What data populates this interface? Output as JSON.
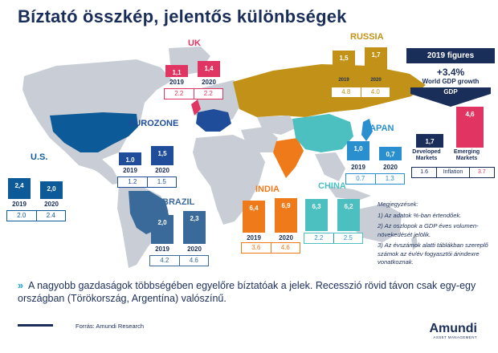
{
  "title": "Bíztató összkép, jelentős különbségek",
  "colors": {
    "navy": "#1a2e5a",
    "us": "#0d5a99",
    "uk": "#e03562",
    "eurozone": "#1f4d9a",
    "russia": "#c29218",
    "japan": "#2a8fcf",
    "india": "#ef7a1a",
    "china": "#4cc0c0",
    "brazil": "#3a6a9a",
    "emerging": "#e03562"
  },
  "regions": {
    "us": {
      "label": "U.S.",
      "gdp": [
        "2,4",
        "2,0"
      ],
      "years": [
        "2019",
        "2020"
      ],
      "inflation": [
        "2.0",
        "2.4"
      ]
    },
    "uk": {
      "label": "UK",
      "gdp": [
        "1,1",
        "1,4"
      ],
      "years": [
        "2019",
        "2020"
      ],
      "inflation": [
        "2.2",
        "2.2"
      ]
    },
    "eurozone": {
      "label": "EUROZONE",
      "gdp": [
        "1.0",
        "1,5"
      ],
      "years": [
        "2019",
        "2020"
      ],
      "inflation": [
        "1.2",
        "1.5"
      ]
    },
    "russia": {
      "label": "RUSSIA",
      "gdp": [
        "1,5",
        "1,7"
      ],
      "years": [
        "2019",
        "2020"
      ],
      "inflation": [
        "4.8",
        "4.0"
      ]
    },
    "japan": {
      "label": "JAPAN",
      "gdp": [
        "1,0",
        "0,7"
      ],
      "years": [
        "2019",
        "2020"
      ],
      "inflation": [
        "0.7",
        "1.3"
      ]
    },
    "india": {
      "label": "INDIA",
      "gdp": [
        "6,4",
        "6,9"
      ],
      "years": [
        "2019",
        "2020"
      ],
      "inflation": [
        "3.6",
        "4.6"
      ]
    },
    "china": {
      "label": "CHINA",
      "gdp": [
        "6,3",
        "6,2"
      ],
      "years": [
        "2019",
        "2020"
      ],
      "inflation": [
        "2.2",
        "2.5"
      ]
    },
    "brazil": {
      "label": "BRAZIL",
      "gdp": [
        "2,0",
        "2,3"
      ],
      "years": [
        "2019",
        "2020"
      ],
      "inflation": [
        "4.2",
        "4.6"
      ]
    }
  },
  "world_panel": {
    "figures_label": "2019 figures",
    "growth_value": "+3.4%",
    "growth_label": "World GDP growth",
    "gdp_label": "GDP",
    "developed": {
      "value": "1,7",
      "label": "Developed Markets",
      "inflation": "1.6"
    },
    "emerging": {
      "value": "4,6",
      "label": "Emerging Markets",
      "inflation": "3.7"
    },
    "inflation_label": "Inflation"
  },
  "notes": {
    "heading": "Megjegyzések:",
    "items": [
      "1)  Az adatok %-ban értendőek.",
      "2)  Az oszlopok a GDP éves volumen-növekedését jelölik.",
      "3)  Az évszámok alatti táblákban szereplő számok az év/év fogyasztói árindexre vonatkoznak."
    ]
  },
  "bullet": "A nagyobb gazdaságok többségében egyelőre bíztatóak a jelek. Recesszió rövid távon csak egy-egy országban (Törökország, Argentína) valószínű.",
  "source": "Forrás: Amundi Research",
  "logo": {
    "name": "Amundi",
    "sub": "ASSET MANAGEMENT"
  }
}
